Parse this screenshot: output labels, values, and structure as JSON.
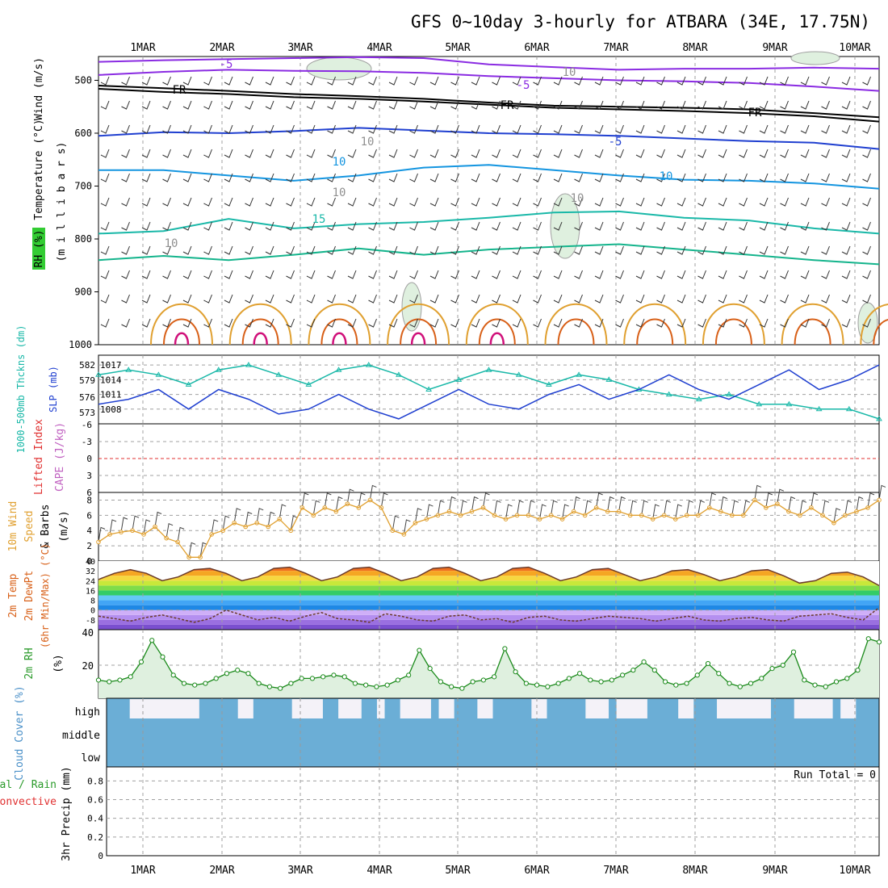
{
  "title": "GFS 0~10day 3-hourly for ATBARA (34E, 17.75N)",
  "date_labels": [
    "1MAR",
    "2MAR",
    "3MAR",
    "4MAR",
    "5MAR",
    "6MAR",
    "7MAR",
    "8MAR",
    "9MAR",
    "10MAR"
  ],
  "colors": {
    "purple": "#8a2be2",
    "blue": "#1f3fd0",
    "skyblue": "#1495e0",
    "teal": "#19b8a8",
    "green_teal": "#14b48c",
    "orange": "#e0a030",
    "dark_orange": "#d86018",
    "magenta": "#d0107a",
    "grid": "#a0a0a0",
    "rh_fill": "#dff0df",
    "cloud": "#6baed6"
  },
  "chart_data": [
    {
      "panel": "upper_air",
      "type": "line",
      "ylabel_parts": [
        {
          "text": "Wind (m/s)",
          "color": "#000000"
        },
        {
          "text": "Temperature (°C)",
          "color": "#e0a030"
        },
        {
          "text": "RH (%)",
          "color": "#2a9a2a"
        }
      ],
      "ylabel2": "(m i l l i b a r s)",
      "y_ticks": [
        500,
        600,
        700,
        800,
        900,
        1000
      ],
      "ylim": [
        455,
        1000
      ],
      "contour_labels": [
        "-5",
        "-5",
        "FR",
        "FR",
        "FR",
        "-5",
        "10",
        "10",
        "15",
        "10",
        "10",
        "10",
        "10",
        "10"
      ],
      "contours": [
        {
          "name": "-5",
          "color": "#8a2be2",
          "y": [
            465,
            462,
            460,
            458,
            456,
            458,
            470,
            475,
            480,
            478,
            478,
            476,
            478
          ]
        },
        {
          "name": "-5b",
          "color": "#8a2be2",
          "y": [
            490,
            484,
            480,
            482,
            483,
            486,
            492,
            496,
            500,
            502,
            505,
            512,
            520
          ]
        },
        {
          "name": "FR",
          "color": "#000000",
          "y": [
            510,
            515,
            520,
            526,
            530,
            535,
            542,
            548,
            550,
            552,
            555,
            562,
            570
          ]
        },
        {
          "name": "FR2",
          "color": "#000000",
          "y": [
            516,
            522,
            526,
            532,
            535,
            540,
            546,
            552,
            555,
            558,
            562,
            568,
            578
          ]
        },
        {
          "name": "5",
          "color": "#1f3fd0",
          "y": [
            605,
            598,
            600,
            596,
            590,
            595,
            600,
            602,
            605,
            610,
            615,
            618,
            630
          ]
        },
        {
          "name": "10",
          "color": "#1495e0",
          "y": [
            670,
            670,
            680,
            690,
            680,
            665,
            660,
            670,
            680,
            688,
            690,
            695,
            705
          ]
        },
        {
          "name": "15",
          "color": "#19b8a8",
          "y": [
            790,
            785,
            762,
            780,
            772,
            768,
            760,
            750,
            748,
            760,
            765,
            780,
            790
          ]
        },
        {
          "name": "20",
          "color": "#14b48c",
          "y": [
            840,
            832,
            840,
            830,
            818,
            830,
            820,
            815,
            810,
            820,
            830,
            840,
            848
          ]
        }
      ]
    },
    {
      "panel": "thickness_slp",
      "type": "line",
      "ylabel_left": "1000-500mb Thckns (dm)",
      "ylabel_right": "SLP (mb)",
      "left_ticks": [
        "582",
        "579",
        "576",
        "573"
      ],
      "right_ticks": [
        "1017",
        "1014",
        "1011",
        "1008"
      ],
      "series": [
        {
          "name": "SLP",
          "color": "#19b8a8",
          "values": [
            1015,
            1016,
            1015,
            1013,
            1016,
            1017,
            1015,
            1013,
            1016,
            1017,
            1015,
            1012,
            1014,
            1016,
            1015,
            1013,
            1015,
            1014,
            1012,
            1011,
            1010,
            1011,
            1009,
            1009,
            1008,
            1008,
            1006
          ]
        },
        {
          "name": "Thickness",
          "color": "#1f3fd0",
          "values": [
            1009,
            1010,
            1012,
            1008,
            1012,
            1010,
            1007,
            1008,
            1011,
            1008,
            1006,
            1009,
            1012,
            1009,
            1008,
            1011,
            1013,
            1010,
            1012,
            1015,
            1012,
            1010,
            1013,
            1016,
            1012,
            1014,
            1017
          ]
        }
      ]
    },
    {
      "panel": "instability",
      "type": "line",
      "ylabel_left": "Lifted Index",
      "ylabel_right": "CAPE (J/kg)",
      "y_ticks": [
        "-6",
        "-3",
        "0",
        "3",
        "6"
      ],
      "ylim": [
        -6,
        6
      ]
    },
    {
      "panel": "wind_10m",
      "type": "line",
      "ylabel_parts": [
        {
          "text": "10m Wind",
          "color": "#e0a030"
        },
        {
          "text": "Speed",
          "color": "#e0a030"
        },
        {
          "text": "& Barbs",
          "color": "#000000"
        }
      ],
      "unit": "(m/s)",
      "y_ticks": [
        0,
        2,
        4,
        6,
        8
      ],
      "ylim": [
        0,
        9
      ],
      "values": [
        2.5,
        3.5,
        3.8,
        4,
        3.5,
        4.5,
        3,
        2.5,
        0.5,
        0.5,
        3.5,
        4,
        5,
        4.5,
        5,
        4.5,
        5.5,
        4,
        7,
        6,
        7,
        6.5,
        7.5,
        7,
        8,
        7,
        4,
        3.5,
        5,
        5.5,
        6,
        6.5,
        6,
        6.5,
        7,
        6,
        5.5,
        6,
        6,
        5.5,
        6,
        5.5,
        6.5,
        6,
        7,
        6.5,
        6.5,
        6,
        6,
        5.5,
        6,
        5.5,
        6,
        6,
        7,
        6.5,
        6,
        6,
        8,
        7,
        7.5,
        6.5,
        6,
        7,
        6,
        5,
        6,
        6.5,
        7,
        8
      ]
    },
    {
      "panel": "temperature",
      "type": "area",
      "ylabel_parts": [
        {
          "text": "2m Temp",
          "color": "#d86018"
        },
        {
          "text": "2m DewPt",
          "color": "#d86018"
        },
        {
          "text": "(6hr Min/Max) (°C)",
          "color": "#d86018"
        }
      ],
      "y_ticks": [
        40,
        32,
        24,
        16,
        8,
        0,
        -8
      ],
      "ylim": [
        -16,
        40
      ],
      "temp": [
        25,
        30,
        33,
        30,
        24,
        27,
        33,
        34,
        30,
        24,
        27,
        34,
        35,
        30,
        24,
        27,
        34,
        35,
        30,
        24,
        27,
        34,
        35,
        30,
        24,
        27,
        34,
        35,
        30,
        24,
        27,
        33,
        34,
        29,
        24,
        27,
        32,
        33,
        29,
        24,
        27,
        32,
        33,
        28,
        22,
        24,
        30,
        31,
        27,
        20
      ],
      "dew": [
        -5,
        -7,
        -9,
        -6,
        -4,
        -7,
        -10,
        -7,
        0,
        -4,
        -8,
        -6,
        -9,
        -5,
        -2,
        -7,
        -8,
        -10,
        -3,
        -5,
        -8,
        -9,
        -5,
        -4,
        -8,
        -7,
        -10,
        -6,
        -5,
        -8,
        -9,
        -7,
        -5,
        -6,
        -7,
        -9,
        -7,
        -5,
        -8,
        -9,
        -7,
        -6,
        -8,
        -9,
        -5,
        -4,
        -3,
        -6,
        -8,
        2
      ]
    },
    {
      "panel": "rh_2m",
      "type": "area",
      "ylabel": "2m RH",
      "unit": "(%)",
      "y_ticks": [
        20,
        40
      ],
      "ylim": [
        0,
        40
      ],
      "values": [
        11,
        10,
        11,
        13,
        22,
        35,
        25,
        14,
        9,
        8,
        9,
        12,
        15,
        17,
        15,
        9,
        7,
        6,
        9,
        12,
        12,
        13,
        14,
        13,
        9,
        8,
        7,
        8,
        11,
        14,
        29,
        18,
        10,
        7,
        6,
        10,
        11,
        13,
        30,
        16,
        9,
        8,
        7,
        9,
        12,
        15,
        11,
        10,
        11,
        14,
        17,
        22,
        17,
        10,
        8,
        9,
        14,
        21,
        15,
        9,
        7,
        9,
        12,
        18,
        20,
        28,
        11,
        8,
        7,
        10,
        12,
        17,
        36,
        34
      ]
    },
    {
      "panel": "cloud_cover",
      "type": "heatmap",
      "ylabel": "Cloud Cover (%)",
      "row_labels": [
        "high",
        "middle",
        "low"
      ],
      "high_gaps": [
        [
          0.03,
          0.12
        ],
        [
          0.17,
          0.19
        ],
        [
          0.24,
          0.28
        ],
        [
          0.3,
          0.33
        ],
        [
          0.35,
          0.36
        ],
        [
          0.38,
          0.42
        ],
        [
          0.43,
          0.45
        ],
        [
          0.48,
          0.5
        ],
        [
          0.55,
          0.57
        ],
        [
          0.62,
          0.65
        ],
        [
          0.66,
          0.7
        ],
        [
          0.74,
          0.76
        ],
        [
          0.79,
          0.86
        ],
        [
          0.89,
          0.94
        ],
        [
          0.95,
          0.97
        ]
      ]
    },
    {
      "panel": "precip",
      "type": "bar",
      "ylabel_parts": [
        {
          "text": "Total / Rain",
          "color": "#2a9a2a"
        },
        {
          "text": "Convective",
          "color": "#e03030"
        },
        {
          "text": "3hr Precip (mm)",
          "color": "#000000"
        }
      ],
      "y_ticks": [
        "0",
        "0.2",
        "0.4",
        "0.6",
        "0.8"
      ],
      "ylim": [
        0,
        0.95
      ],
      "run_total": "Run Total = 0"
    }
  ]
}
